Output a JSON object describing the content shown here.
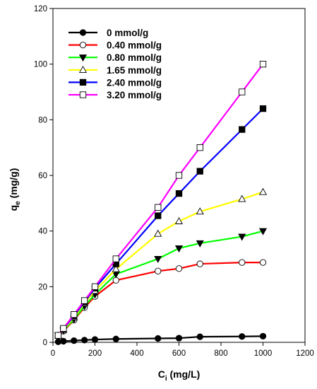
{
  "chart_data": {
    "type": "line",
    "xlabel_main": "C",
    "xlabel_sub": "i",
    "xlabel_unit": " (mg/L)",
    "ylabel_main": "q",
    "ylabel_sub": "e",
    "ylabel_unit": " (mg/g)",
    "xlim": [
      0,
      1200
    ],
    "ylim": [
      0,
      120
    ],
    "xticks": [
      0,
      200,
      400,
      600,
      800,
      1000,
      1200
    ],
    "yticks": [
      0,
      20,
      40,
      60,
      80,
      100,
      120
    ],
    "grid": false,
    "legend_position": "top-left",
    "series": [
      {
        "name": "0 mmol/g",
        "color": "#000000",
        "marker": "filled-circle",
        "x": [
          25,
          50,
          100,
          150,
          200,
          300,
          500,
          600,
          700,
          900,
          1000
        ],
        "y": [
          0.2,
          0.4,
          0.6,
          0.8,
          1.0,
          1.2,
          1.4,
          1.5,
          2.0,
          2.1,
          2.2
        ]
      },
      {
        "name": "0.40 mmol/g",
        "color": "#ff0000",
        "marker": "open-circle",
        "x": [
          25,
          50,
          100,
          150,
          200,
          300,
          500,
          600,
          700,
          900,
          1000
        ],
        "y": [
          2.3,
          4.0,
          8.0,
          12.5,
          16.5,
          22.3,
          25.6,
          26.5,
          28.2,
          28.7,
          28.7
        ]
      },
      {
        "name": "0.80 mmol/g",
        "color": "#00ff00",
        "marker": "filled-triangle-down",
        "x": [
          25,
          50,
          100,
          150,
          200,
          300,
          500,
          600,
          700,
          900,
          1000
        ],
        "y": [
          2.4,
          4.3,
          8.3,
          13.0,
          17.2,
          24.5,
          30.0,
          33.8,
          35.6,
          38.0,
          40.0
        ]
      },
      {
        "name": "1.65 mmol/g",
        "color": "#ffff00",
        "marker": "open-triangle-up",
        "x": [
          25,
          50,
          100,
          150,
          200,
          300,
          500,
          600,
          700,
          900,
          1000
        ],
        "y": [
          2.4,
          4.5,
          9.0,
          14.0,
          18.5,
          26.3,
          39.0,
          43.5,
          47.0,
          51.5,
          54.0
        ]
      },
      {
        "name": "2.40 mmol/g",
        "color": "#0000ff",
        "marker": "filled-square",
        "x": [
          25,
          50,
          100,
          150,
          200,
          300,
          500,
          600,
          700,
          900,
          1000
        ],
        "y": [
          2.5,
          4.8,
          9.5,
          14.5,
          19.5,
          28.2,
          45.5,
          53.5,
          61.5,
          76.5,
          84.0
        ]
      },
      {
        "name": "3.20 mmol/g",
        "color": "#ff00ff",
        "marker": "open-square",
        "x": [
          25,
          50,
          100,
          150,
          200,
          300,
          500,
          600,
          700,
          900,
          1000
        ],
        "y": [
          2.5,
          5.0,
          10.0,
          15.0,
          20.0,
          30.0,
          48.5,
          60.0,
          70.0,
          90.0,
          100.0
        ]
      }
    ]
  }
}
